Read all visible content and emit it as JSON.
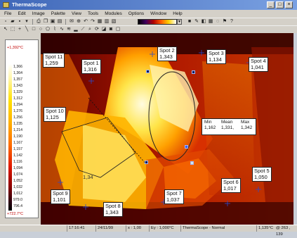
{
  "window": {
    "title": "ThermaScope"
  },
  "menu": [
    "File",
    "Edit",
    "Image",
    "Palette",
    "View",
    "Tools",
    "Modules",
    "Options",
    "Window",
    "Help"
  ],
  "palette": {
    "selected_label": ""
  },
  "scale": {
    "max_label": "+1,392°C",
    "min_label": "+722.7°C",
    "ticks": [
      "1,366",
      "1,364",
      "1,357",
      "1,343",
      "1,329",
      "1,312",
      "1,294",
      "1,276",
      "1,256",
      "1,235",
      "1,214",
      "1,190",
      "1,167",
      "1,157",
      "1,142",
      "1,116",
      "1,094",
      "1,074",
      "1,052",
      "1,032",
      "1,012",
      "979.0",
      "796.4"
    ]
  },
  "spots": [
    {
      "id": "spot11",
      "label": "Spot 11",
      "value": "1,259"
    },
    {
      "id": "spot1",
      "label": "Spot 1",
      "value": "1,316"
    },
    {
      "id": "spot2",
      "label": "Spot 2",
      "value": "1,343"
    },
    {
      "id": "spot3",
      "label": "Spot 3",
      "value": "1,134"
    },
    {
      "id": "spot4",
      "label": "Spot 4",
      "value": "1,041"
    },
    {
      "id": "spot10",
      "label": "Spot 10",
      "value": "1,125"
    },
    {
      "id": "spot9",
      "label": "Spot 9",
      "value": "1,101"
    },
    {
      "id": "spot8",
      "label": "Spot 8",
      "value": "1,343"
    },
    {
      "id": "spot7",
      "label": "Spot 7",
      "value": "1,037"
    },
    {
      "id": "spot6",
      "label": "Spot 6",
      "value": "1,017"
    },
    {
      "id": "spot5",
      "label": "Spot 5",
      "value": "1,050"
    }
  ],
  "region_stats": {
    "headers": [
      "Min",
      "Mean",
      "Max"
    ],
    "values": [
      "1,162",
      "1,331,",
      "1,342"
    ]
  },
  "line_label": "1,34",
  "status": {
    "time": "17:16:41",
    "date": "24/11/99",
    "zoom": "x : 1,00",
    "emissivity": "Ey : 1,000°C",
    "mode": "ThermaScope - Normal",
    "cursor_temp": "1,135°C",
    "cursor_pos": "@ 263 , 139"
  },
  "colors": {
    "titlebar": "#3f67b8",
    "scale_range_text": "#c00000",
    "chrome": "#d4d0c8"
  }
}
